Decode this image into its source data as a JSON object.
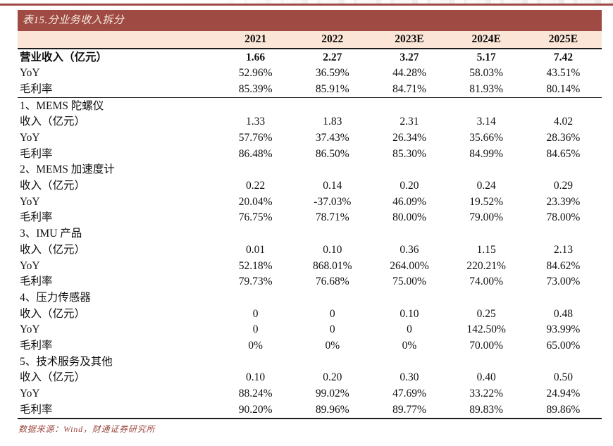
{
  "title_bar": "表15.分业务收入拆分",
  "source_note": "数据来源：Wind，财通证券研究所",
  "colors": {
    "accent": "#a04a44",
    "header_bg": "#fbe5d6",
    "source_text": "#9c4a43"
  },
  "chart_data": {
    "type": "table",
    "columns": [
      "2021",
      "2022",
      "2023E",
      "2024E",
      "2025E"
    ],
    "rows": [
      {
        "label": "营业收入（亿元）",
        "style": "bold",
        "values": [
          "1.66",
          "2.27",
          "3.27",
          "5.17",
          "7.42"
        ]
      },
      {
        "label": "YoY",
        "style": "normal",
        "values": [
          "52.96%",
          "36.59%",
          "44.28%",
          "58.03%",
          "43.51%"
        ]
      },
      {
        "label": "毛利率",
        "style": "normal",
        "rule_below": true,
        "values": [
          "85.39%",
          "85.91%",
          "84.71%",
          "81.93%",
          "80.14%"
        ]
      },
      {
        "label": "1、MEMS 陀螺仪",
        "style": "section",
        "values": [
          "",
          "",
          "",
          "",
          ""
        ]
      },
      {
        "label": "收入（亿元）",
        "style": "normal",
        "values": [
          "1.33",
          "1.83",
          "2.31",
          "3.14",
          "4.02"
        ]
      },
      {
        "label": "YoY",
        "style": "normal",
        "values": [
          "57.76%",
          "37.43%",
          "26.34%",
          "35.66%",
          "28.36%"
        ]
      },
      {
        "label": "毛利率",
        "style": "normal",
        "values": [
          "86.48%",
          "86.50%",
          "85.30%",
          "84.99%",
          "84.65%"
        ]
      },
      {
        "label": "2、MEMS 加速度计",
        "style": "section",
        "values": [
          "",
          "",
          "",
          "",
          ""
        ]
      },
      {
        "label": "收入（亿元）",
        "style": "normal",
        "values": [
          "0.22",
          "0.14",
          "0.20",
          "0.24",
          "0.29"
        ]
      },
      {
        "label": "YoY",
        "style": "normal",
        "values": [
          "20.04%",
          "-37.03%",
          "46.09%",
          "19.52%",
          "23.39%"
        ]
      },
      {
        "label": "毛利率",
        "style": "normal",
        "values": [
          "76.75%",
          "78.71%",
          "80.00%",
          "79.00%",
          "78.00%"
        ]
      },
      {
        "label": "3、IMU 产品",
        "style": "section",
        "values": [
          "",
          "",
          "",
          "",
          ""
        ]
      },
      {
        "label": "收入（亿元）",
        "style": "normal",
        "values": [
          "0.01",
          "0.10",
          "0.36",
          "1.15",
          "2.13"
        ]
      },
      {
        "label": "YoY",
        "style": "normal",
        "values": [
          "52.18%",
          "868.01%",
          "264.00%",
          "220.21%",
          "84.62%"
        ]
      },
      {
        "label": "毛利率",
        "style": "normal",
        "values": [
          "79.73%",
          "76.68%",
          "75.00%",
          "74.00%",
          "73.00%"
        ]
      },
      {
        "label": "4、压力传感器",
        "style": "section",
        "values": [
          "",
          "",
          "",
          "",
          ""
        ]
      },
      {
        "label": "收入（亿元）",
        "style": "normal",
        "values": [
          "0",
          "0",
          "0.10",
          "0.25",
          "0.48"
        ]
      },
      {
        "label": "YoY",
        "style": "normal",
        "values": [
          "0",
          "0",
          "0",
          "142.50%",
          "93.99%"
        ]
      },
      {
        "label": "毛利率",
        "style": "normal",
        "values": [
          "0%",
          "0%",
          "0%",
          "70.00%",
          "65.00%"
        ]
      },
      {
        "label": "5、技术服务及其他",
        "style": "section",
        "values": [
          "",
          "",
          "",
          "",
          ""
        ]
      },
      {
        "label": "收入（亿元）",
        "style": "normal",
        "values": [
          "0.10",
          "0.20",
          "0.30",
          "0.40",
          "0.50"
        ]
      },
      {
        "label": "YoY",
        "style": "normal",
        "values": [
          "88.24%",
          "99.02%",
          "47.69%",
          "33.22%",
          "24.94%"
        ]
      },
      {
        "label": "毛利率",
        "style": "normal",
        "values": [
          "90.20%",
          "89.96%",
          "89.77%",
          "89.83%",
          "89.86%"
        ]
      }
    ]
  }
}
